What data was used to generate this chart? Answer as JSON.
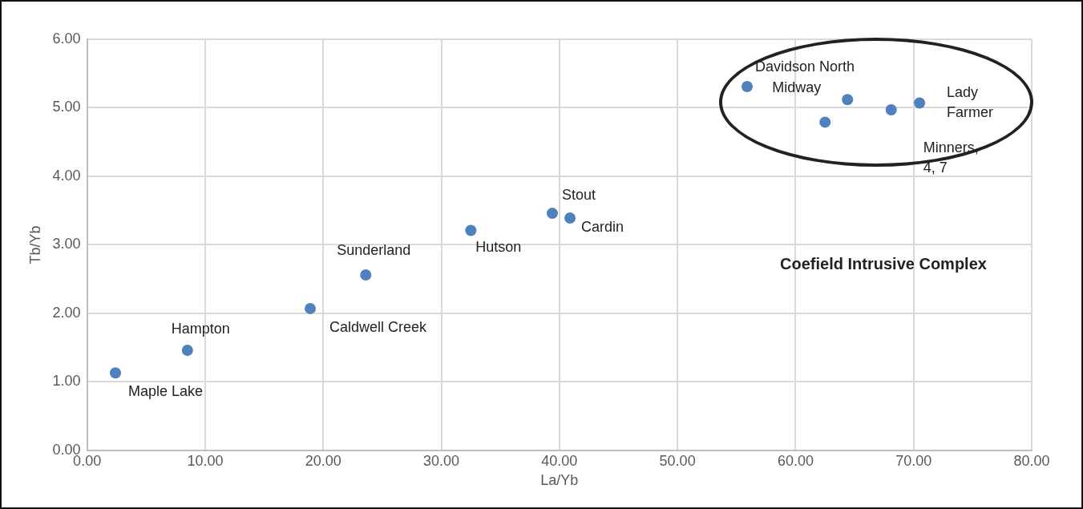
{
  "chart_data": {
    "type": "scatter",
    "xlabel": "La/Yb",
    "ylabel": "Tb/Yb",
    "x": [
      2.4,
      8.5,
      18.9,
      23.6,
      32.5,
      39.4,
      40.9,
      55.9,
      62.5,
      64.4,
      68.1,
      70.5
    ],
    "series": [
      {
        "color": "#4f81bd",
        "values": [
          1.13,
          1.46,
          2.07,
          2.56,
          3.21,
          3.46,
          3.39,
          5.31,
          4.79,
          5.12,
          4.97,
          5.07
        ],
        "value_labels": [
          "Maple Lake",
          "Hampton",
          "Caldwell Creek",
          "Sunderland",
          "Hutson",
          "Stout",
          "Cardin",
          "Davidson North",
          null,
          "Midway",
          "Minners,\n4, 7",
          "Lady\nFarmer"
        ]
      }
    ],
    "xlim": [
      0,
      80
    ],
    "xticks": [
      {
        "value": 0,
        "label": "0.00"
      },
      {
        "value": 10,
        "label": "10.00"
      },
      {
        "value": 20,
        "label": "20.00"
      },
      {
        "value": 30,
        "label": "30.00"
      },
      {
        "value": 40,
        "label": "40.00"
      },
      {
        "value": 50,
        "label": "50.00"
      },
      {
        "value": 60,
        "label": "60.00"
      },
      {
        "value": 70,
        "label": "70.00"
      },
      {
        "value": 80,
        "label": "80.00"
      }
    ],
    "ylim": [
      0,
      6
    ],
    "yticks": [
      {
        "value": 0,
        "label": "0.00"
      },
      {
        "value": 1,
        "label": "1.00"
      },
      {
        "value": 2,
        "label": "2.00"
      },
      {
        "value": 3,
        "label": "3.00"
      },
      {
        "value": 4,
        "label": "4.00"
      },
      {
        "value": 5,
        "label": "5.00"
      },
      {
        "value": 6,
        "label": "6.00"
      }
    ],
    "annotations": [
      "Coefield Intrusive Complex"
    ],
    "grid": true,
    "marker": "circle"
  }
}
